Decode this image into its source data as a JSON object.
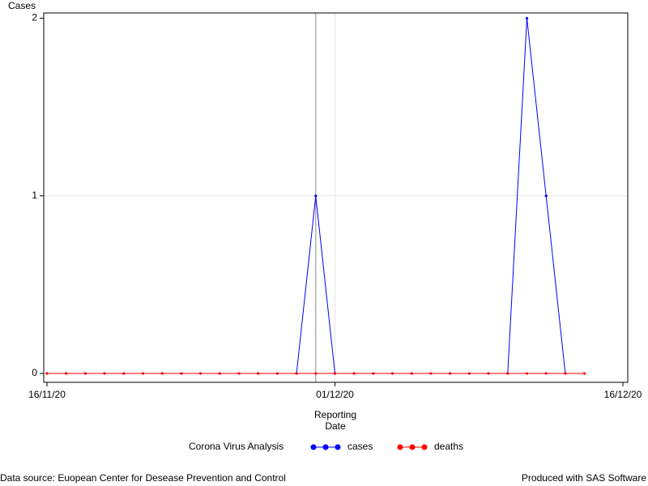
{
  "chart_data": {
    "type": "line",
    "y_label": "Cases",
    "x_label": "Reporting Date",
    "legend_title": "Corona Virus Analysis",
    "footnote_left": "Data source: Euopean Center for Desease Prevention and Control",
    "footnote_right": "Produced with SAS Software",
    "x": [
      "16/11/20",
      "17/11/20",
      "18/11/20",
      "19/11/20",
      "20/11/20",
      "21/11/20",
      "22/11/20",
      "23/11/20",
      "24/11/20",
      "25/11/20",
      "26/11/20",
      "27/11/20",
      "28/11/20",
      "29/11/20",
      "30/11/20",
      "01/12/20",
      "02/12/20",
      "03/12/20",
      "04/12/20",
      "05/12/20",
      "06/12/20",
      "07/12/20",
      "08/12/20",
      "09/12/20",
      "10/12/20",
      "11/12/20",
      "12/12/20",
      "13/12/20",
      "14/12/20"
    ],
    "series": [
      {
        "name": "cases",
        "color": "#0000ff",
        "values": [
          0,
          0,
          0,
          0,
          0,
          0,
          0,
          0,
          0,
          0,
          0,
          0,
          0,
          0,
          1,
          0,
          0,
          0,
          0,
          0,
          0,
          0,
          0,
          0,
          0,
          2,
          1,
          0,
          null
        ]
      },
      {
        "name": "deaths",
        "color": "#ff0000",
        "values": [
          0,
          0,
          0,
          0,
          0,
          0,
          0,
          0,
          0,
          0,
          0,
          0,
          0,
          0,
          0,
          0,
          0,
          0,
          0,
          0,
          0,
          0,
          0,
          0,
          0,
          0,
          0,
          0,
          0
        ]
      }
    ],
    "xlim": [
      "16/11/20",
      "16/12/20"
    ],
    "xticks": [
      "16/11/20",
      "01/12/20",
      "16/12/20"
    ],
    "ylim": [
      -0.05,
      2.03
    ],
    "yticks": [
      0,
      1,
      2
    ],
    "grid": true,
    "reference_line_x": "30/11/20"
  }
}
